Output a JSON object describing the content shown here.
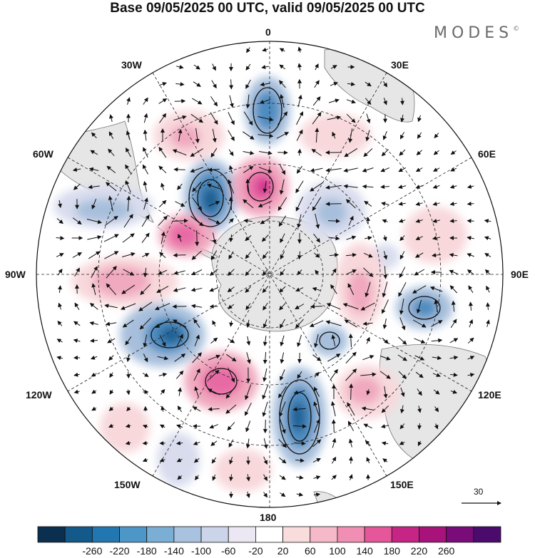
{
  "title": "Base 09/05/2025 00 UTC, valid 09/05/2025 00 UTC",
  "brand": "MODES",
  "brand_mark": "©",
  "map": {
    "projection": "south-polar-stereographic",
    "meridian_labels": [
      "0",
      "30E",
      "60E",
      "90E",
      "120E",
      "150E",
      "180",
      "150W",
      "120W",
      "90W",
      "60W",
      "30W"
    ],
    "anomaly_colors": {
      "neg_strong": "#1f5f93",
      "neg_mid": "#4d8cc0",
      "neg_light": "#a7bfdc",
      "neg_faint": "#d8dced",
      "pos_faint": "#f8d8db",
      "pos_light": "#f0a9bf",
      "pos_mid": "#e86aa5",
      "pos_strong": "#cf2a8b",
      "land": "#e6e6e6"
    }
  },
  "vector_reference": {
    "label": "30"
  },
  "colorbar": {
    "ticks": [
      "-260",
      "-220",
      "-180",
      "-140",
      "-100",
      "-60",
      "-20",
      "20",
      "60",
      "100",
      "140",
      "180",
      "220",
      "260"
    ],
    "colors": [
      "#0b2f4f",
      "#13598a",
      "#2377b0",
      "#4d96c8",
      "#7aaed5",
      "#a8c2e0",
      "#ccd4ea",
      "#ebe8f3",
      "#ffffff",
      "#f9dcdc",
      "#f6b9c9",
      "#f18eb3",
      "#e6569a",
      "#c72585",
      "#a7137a",
      "#7a0c79",
      "#4b0b6c"
    ]
  }
}
